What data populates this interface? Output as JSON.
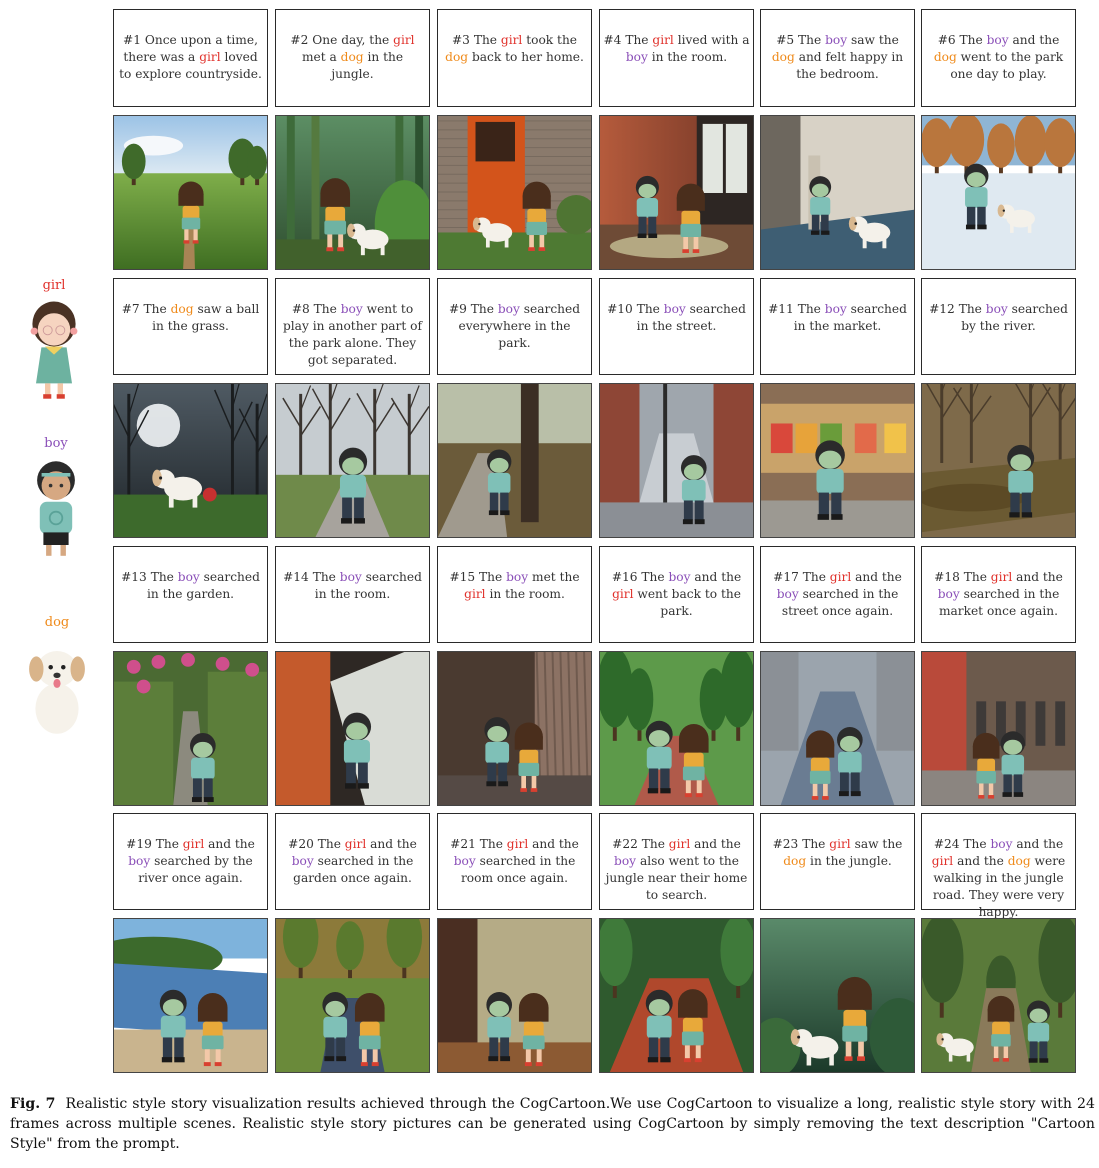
{
  "characters": [
    {
      "key": "girl",
      "label": "girl",
      "color": "#e0302a"
    },
    {
      "key": "boy",
      "label": "boy",
      "color": "#8a4fb8"
    },
    {
      "key": "dog",
      "label": "dog",
      "color": "#ef8a1a"
    }
  ],
  "word_colors": {
    "girl": "#e0302a",
    "boy": "#8a4fb8",
    "dog": "#ef8a1a"
  },
  "frames": [
    {
      "n": 1,
      "text": "#1 Once upon a time, there was a girl loved to explore countryside.",
      "scene": "countryside"
    },
    {
      "n": 2,
      "text": "#2 One day, the girl met a dog in the jungle.",
      "scene": "jungle"
    },
    {
      "n": 3,
      "text": "#3 The girl took the dog back to her home.",
      "scene": "home"
    },
    {
      "n": 4,
      "text": "#4 The girl lived with a boy in the room.",
      "scene": "room"
    },
    {
      "n": 5,
      "text": "#5 The boy saw the dog and felt happy in the bedroom.",
      "scene": "bedroom"
    },
    {
      "n": 6,
      "text": "#6 The boy and the dog went to the park one day to play.",
      "scene": "snowpark"
    },
    {
      "n": 7,
      "text": "#7 The dog saw a ball in the grass.",
      "scene": "darkpark"
    },
    {
      "n": 8,
      "text": "#8 The boy went to play in another part of the park alone. They got separated.",
      "scene": "park"
    },
    {
      "n": 9,
      "text": "#9 The boy searched everywhere in the park.",
      "scene": "trees"
    },
    {
      "n": 10,
      "text": "#10 The boy searched in the street.",
      "scene": "street"
    },
    {
      "n": 11,
      "text": "#11 The boy searched in the market.",
      "scene": "market"
    },
    {
      "n": 12,
      "text": "#12 The boy searched by the river.",
      "scene": "creek"
    },
    {
      "n": 13,
      "text": "#13 The boy searched in the garden.",
      "scene": "garden"
    },
    {
      "n": 14,
      "text": "#14 The boy searched in the room.",
      "scene": "corridor"
    },
    {
      "n": 15,
      "text": "#15 The boy met the girl in the room.",
      "scene": "curtainroom"
    },
    {
      "n": 16,
      "text": "#16 The boy and the girl went back to the park.",
      "scene": "greenpark"
    },
    {
      "n": 17,
      "text": "#17 The girl and the boy searched in the street once again.",
      "scene": "street2"
    },
    {
      "n": 18,
      "text": "#18 The girl and the boy searched in the market once again.",
      "scene": "market2"
    },
    {
      "n": 19,
      "text": "#19 The girl and the boy searched by the river once again.",
      "scene": "river"
    },
    {
      "n": 20,
      "text": "#20 The girl and the boy searched in the garden once again.",
      "scene": "gardenpath"
    },
    {
      "n": 21,
      "text": "#21 The girl and the boy searched in the room once again.",
      "scene": "room2"
    },
    {
      "n": 22,
      "text": "#22 The girl and the boy also went to the jungle near their home to search.",
      "scene": "redpath"
    },
    {
      "n": 23,
      "text": "#23 The girl saw the dog in the jungle.",
      "scene": "jungle2"
    },
    {
      "n": 24,
      "text": "#24 The boy and the girl and the dog were walking in the jungle road. They were very happy.",
      "scene": "jungleroad"
    }
  ],
  "caption": {
    "label": "Fig. 7",
    "text": "Realistic style story visualization results achieved through the CogCartoon.We use CogCartoon to visualize a long, realistic style story with 24 frames across multiple scenes. Realistic style story pictures can be generated using CogCartoon by simply removing the text description \"Cartoon Style\" from the prompt."
  }
}
